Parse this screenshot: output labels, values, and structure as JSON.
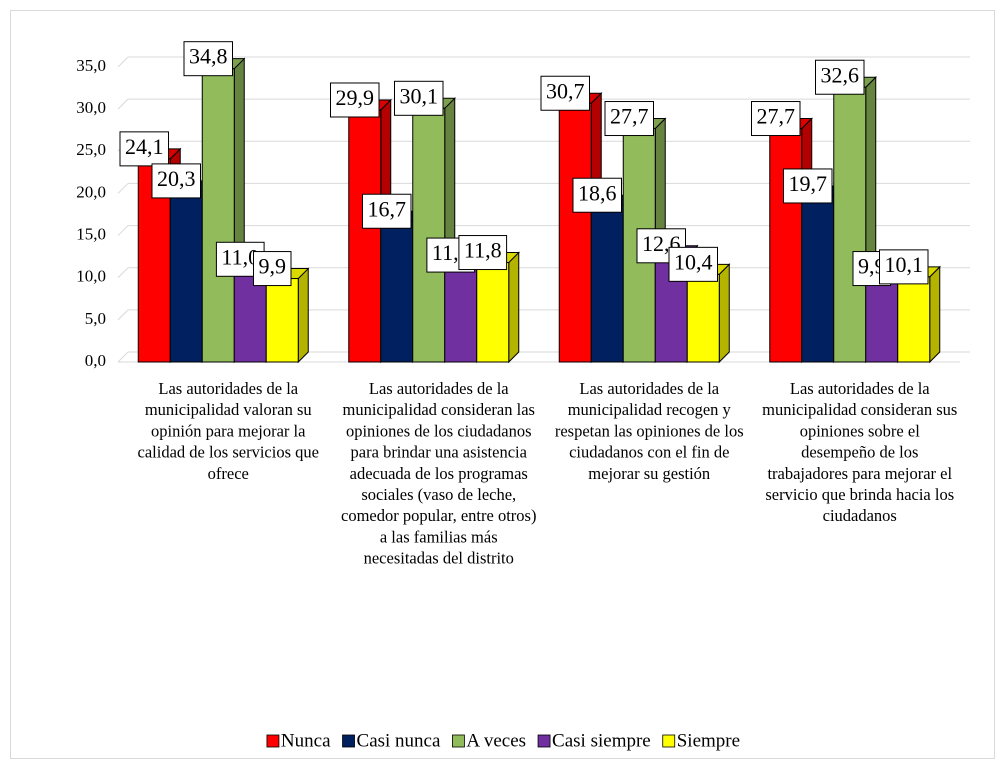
{
  "chart_data": {
    "type": "bar3d",
    "categories": [
      "Las autoridades de la municipalidad valoran su opinión para mejorar la calidad de los servicios que ofrece",
      "Las autoridades de la municipalidad consideran las opiniones de los ciudadanos para brindar una asistencia adecuada de los programas sociales (vaso de leche, comedor popular, entre otros) a las familias más necesitadas del distrito",
      "Las autoridades de la municipalidad recogen y respetan las opiniones de los ciudadanos con el fin de mejorar su gestión",
      "Las autoridades de la municipalidad consideran sus opiniones sobre el desempeño de los trabajadores para mejorar el servicio que brinda hacia los ciudadanos"
    ],
    "series": [
      {
        "name": "Nunca",
        "color": "#ff0000",
        "values": [
          24.1,
          29.9,
          30.7,
          27.7
        ],
        "value_labels": [
          "24,1",
          "29,9",
          "30,7",
          "27,7"
        ]
      },
      {
        "name": "Casi nunca",
        "color": "#002060",
        "values": [
          20.3,
          16.7,
          18.6,
          19.7
        ],
        "value_labels": [
          "20,3",
          "16,7",
          "18,6",
          "19,7"
        ]
      },
      {
        "name": "A veces",
        "color": "#92bc5c",
        "values": [
          34.8,
          30.1,
          27.7,
          32.6
        ],
        "value_labels": [
          "34,8",
          "30,1",
          "27,7",
          "32,6"
        ]
      },
      {
        "name": "Casi siempre",
        "color": "#7030a0",
        "values": [
          11.0,
          11.5,
          12.6,
          9.9
        ],
        "value_labels": [
          "11,0",
          "11,5",
          "12,6",
          "9,9"
        ]
      },
      {
        "name": "Siempre",
        "color": "#ffff00",
        "values": [
          9.9,
          11.8,
          10.4,
          10.1
        ],
        "value_labels": [
          "9,9",
          "11,8",
          "10,4",
          "10,1"
        ]
      }
    ],
    "ylim": [
      0,
      35
    ],
    "yticks": [
      {
        "value": 0,
        "label": "0,0"
      },
      {
        "value": 5,
        "label": "5,0"
      },
      {
        "value": 10,
        "label": "10,0"
      },
      {
        "value": 15,
        "label": "15,0"
      },
      {
        "value": 20,
        "label": "20,0"
      },
      {
        "value": 25,
        "label": "25,0"
      },
      {
        "value": 30,
        "label": "30,0"
      },
      {
        "value": 35,
        "label": "35,0"
      }
    ],
    "grid": true,
    "legend": "bottom"
  }
}
